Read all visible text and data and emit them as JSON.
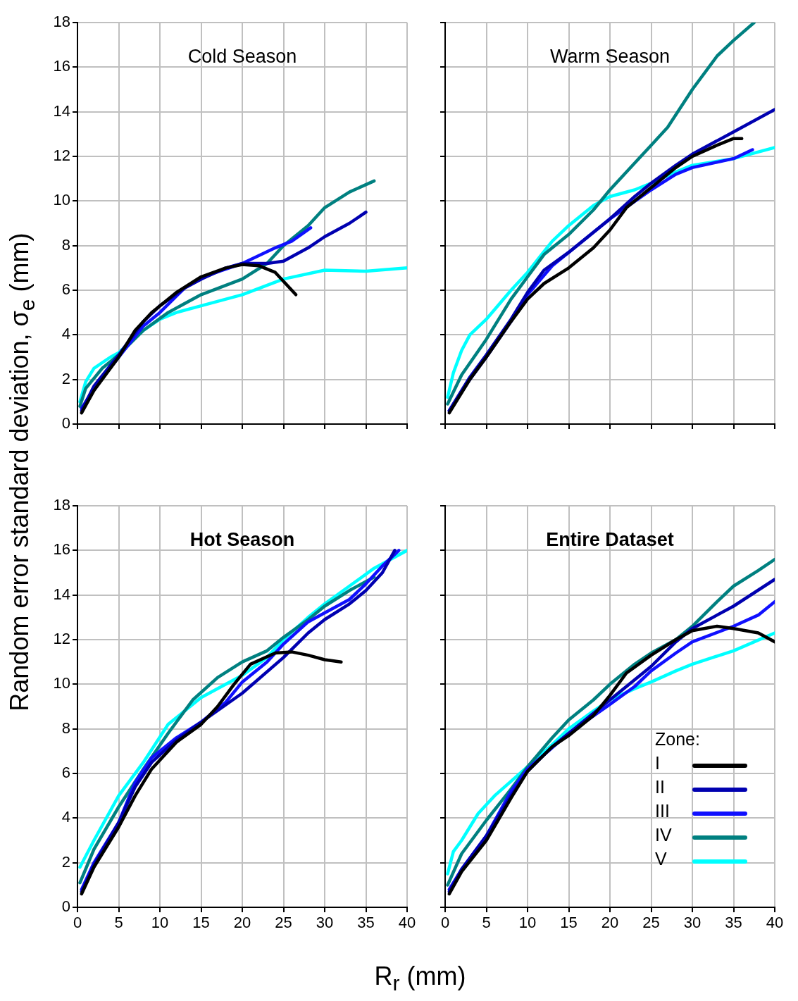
{
  "chart_data": [
    {
      "type": "line",
      "title": "Cold Season",
      "ylabel": "Random error standard deviation, σ$_{e}$ (mm)",
      "xlim": [
        0,
        40
      ],
      "xticks": [
        0,
        5,
        10,
        15,
        20,
        25,
        30,
        35,
        40
      ],
      "ylim": [
        0,
        18
      ],
      "yticks": [
        0,
        2,
        4,
        6,
        8,
        10,
        12,
        14,
        16,
        18
      ],
      "grid": true,
      "tick_labels": "y",
      "marker": "none",
      "line_style": "solid",
      "series": [
        {
          "color": "#000000",
          "x": [
            0.5,
            2,
            5,
            7,
            9,
            12,
            15,
            18,
            20,
            22,
            24,
            26.5
          ],
          "values": [
            0.5,
            1.5,
            3.0,
            4.2,
            5.0,
            5.9,
            6.6,
            7.0,
            7.15,
            7.1,
            6.8,
            5.8
          ]
        },
        {
          "color": "#0000b0",
          "x": [
            0.5,
            2,
            5,
            8,
            10,
            13,
            15,
            18,
            20,
            23,
            25,
            28,
            30,
            33,
            35
          ],
          "values": [
            0.6,
            1.7,
            3.1,
            4.6,
            5.3,
            6.1,
            6.5,
            7.0,
            7.2,
            7.2,
            7.3,
            7.9,
            8.4,
            9.0,
            9.5
          ]
        },
        {
          "color": "#1010ff",
          "x": [
            0.5,
            2,
            5,
            8,
            10,
            13,
            16,
            20,
            24,
            26,
            28.3
          ],
          "values": [
            0.7,
            1.6,
            3.0,
            4.4,
            5.0,
            6.1,
            6.7,
            7.2,
            7.9,
            8.2,
            8.8
          ]
        },
        {
          "color": "#008080",
          "x": [
            0.3,
            1,
            3,
            5,
            8,
            11,
            15,
            20,
            23,
            25,
            28,
            30,
            33,
            36
          ],
          "values": [
            0.8,
            1.6,
            2.5,
            3.1,
            4.2,
            5.0,
            5.8,
            6.5,
            7.2,
            8.0,
            8.9,
            9.7,
            10.4,
            10.9
          ]
        },
        {
          "color": "#00ffff",
          "x": [
            0.3,
            1,
            2,
            4,
            5,
            8,
            10,
            12,
            15,
            20,
            25,
            30,
            35,
            40
          ],
          "values": [
            1.0,
            1.9,
            2.5,
            3.0,
            3.2,
            4.2,
            4.7,
            5.0,
            5.3,
            5.8,
            6.5,
            6.9,
            6.85,
            7.0
          ]
        }
      ]
    },
    {
      "type": "line",
      "title": "Warm Season",
      "xlim": [
        0,
        40
      ],
      "xticks": [
        0,
        5,
        10,
        15,
        20,
        25,
        30,
        35,
        40
      ],
      "ylim": [
        0,
        18
      ],
      "yticks": [
        0,
        2,
        4,
        6,
        8,
        10,
        12,
        14,
        16,
        18
      ],
      "grid": true,
      "tick_labels": false,
      "marker": "none",
      "line_style": "solid",
      "series": [
        {
          "color": "#000000",
          "x": [
            0.5,
            3,
            5,
            8,
            10,
            12,
            15,
            18,
            20,
            22,
            25,
            28,
            30,
            33,
            35,
            36
          ],
          "values": [
            0.5,
            2.0,
            3.0,
            4.6,
            5.6,
            6.3,
            7.0,
            7.9,
            8.7,
            9.7,
            10.6,
            11.5,
            12.0,
            12.5,
            12.8,
            12.8
          ]
        },
        {
          "color": "#0000b0",
          "x": [
            0.5,
            3,
            5,
            8,
            10,
            12,
            15,
            18,
            20,
            23,
            25,
            28,
            30,
            35,
            40
          ],
          "values": [
            0.6,
            2.1,
            3.1,
            4.7,
            5.9,
            6.9,
            7.7,
            8.6,
            9.2,
            10.2,
            10.8,
            11.6,
            12.1,
            13.1,
            14.1
          ]
        },
        {
          "color": "#1010ff",
          "x": [
            0.5,
            3,
            5,
            8,
            10,
            13,
            15,
            20,
            25,
            28,
            30,
            35,
            37.3
          ],
          "values": [
            0.6,
            2.0,
            3.0,
            4.6,
            5.8,
            7.1,
            7.7,
            9.2,
            10.5,
            11.2,
            11.5,
            11.9,
            12.3
          ]
        },
        {
          "color": "#008080",
          "x": [
            0.3,
            2,
            5,
            8,
            10,
            12,
            15,
            18,
            20,
            23,
            25,
            27,
            30,
            33,
            35,
            37.5
          ],
          "values": [
            0.9,
            2.2,
            3.8,
            5.6,
            6.6,
            7.6,
            8.5,
            9.6,
            10.5,
            11.7,
            12.5,
            13.3,
            15.0,
            16.5,
            17.2,
            18.0
          ]
        },
        {
          "color": "#00ffff",
          "x": [
            0.3,
            1,
            2,
            3,
            5,
            8,
            10,
            13,
            15,
            18,
            20,
            23,
            25,
            28,
            30,
            35,
            40
          ],
          "values": [
            1.2,
            2.3,
            3.3,
            4.0,
            4.7,
            6.0,
            6.8,
            8.2,
            8.9,
            9.8,
            10.2,
            10.5,
            10.8,
            11.3,
            11.6,
            11.9,
            12.4
          ]
        }
      ]
    },
    {
      "type": "line",
      "title": "Hot Season",
      "xlabel": "R$_{r}$ (mm)",
      "xlim": [
        0,
        40
      ],
      "xticks": [
        0,
        5,
        10,
        15,
        20,
        25,
        30,
        35,
        40
      ],
      "ylim": [
        0,
        18
      ],
      "yticks": [
        0,
        2,
        4,
        6,
        8,
        10,
        12,
        14,
        16,
        18
      ],
      "grid": true,
      "marker": "none",
      "line_style": "solid",
      "series": [
        {
          "color": "#000000",
          "x": [
            0.5,
            2,
            5,
            7,
            9,
            12,
            15,
            17,
            19,
            21,
            24,
            26,
            28,
            30,
            32
          ],
          "values": [
            0.6,
            1.8,
            3.6,
            5.0,
            6.2,
            7.4,
            8.2,
            9.0,
            10.0,
            10.9,
            11.4,
            11.45,
            11.3,
            11.1,
            11.0
          ]
        },
        {
          "color": "#0000b0",
          "x": [
            0.5,
            2,
            5,
            7,
            9,
            12,
            15,
            20,
            25,
            28,
            30,
            33,
            35,
            37,
            38.5
          ],
          "values": [
            0.7,
            1.9,
            3.8,
            5.4,
            6.5,
            7.5,
            8.3,
            9.6,
            11.2,
            12.3,
            12.9,
            13.6,
            14.2,
            15.0,
            16.0
          ]
        },
        {
          "color": "#1010ff",
          "x": [
            0.5,
            2,
            5,
            7,
            9,
            12,
            15,
            18,
            20,
            23,
            25,
            28,
            30,
            33,
            35,
            37,
            39
          ],
          "values": [
            0.8,
            2.0,
            3.8,
            5.6,
            6.7,
            7.6,
            8.3,
            9.2,
            10.1,
            11.0,
            11.8,
            12.8,
            13.2,
            13.8,
            14.5,
            15.3,
            16.0
          ]
        },
        {
          "color": "#008080",
          "x": [
            0.3,
            2,
            5,
            8,
            11,
            14,
            17,
            20,
            23,
            25,
            28,
            30,
            33,
            36
          ],
          "values": [
            1.1,
            2.6,
            4.5,
            6.2,
            7.8,
            9.3,
            10.3,
            11.0,
            11.5,
            12.1,
            12.9,
            13.5,
            14.2,
            14.8
          ]
        },
        {
          "color": "#00ffff",
          "x": [
            0.3,
            2,
            5,
            8,
            11,
            13,
            15,
            18,
            20,
            23,
            25,
            28,
            30,
            33,
            36,
            40
          ],
          "values": [
            1.8,
            3.0,
            5.0,
            6.5,
            8.2,
            8.8,
            9.4,
            10.0,
            10.4,
            11.2,
            12.0,
            13.0,
            13.6,
            14.4,
            15.2,
            16.0
          ]
        }
      ]
    },
    {
      "type": "line",
      "title": "Entire Dataset",
      "xlim": [
        0,
        40
      ],
      "xticks": [
        0,
        5,
        10,
        15,
        20,
        25,
        30,
        35,
        40
      ],
      "ylim": [
        0,
        18
      ],
      "yticks": [
        0,
        2,
        4,
        6,
        8,
        10,
        12,
        14,
        16,
        18
      ],
      "grid": true,
      "tick_labels": "x",
      "marker": "none",
      "line_style": "solid",
      "legend": "bottom right",
      "legend_title": "Zone:",
      "series": [
        {
          "name": "I",
          "color": "#000000",
          "x": [
            0.5,
            2,
            5,
            8,
            10,
            13,
            15,
            18,
            20,
            22,
            25,
            28,
            30,
            33,
            35,
            38,
            40
          ],
          "values": [
            0.6,
            1.6,
            3.0,
            4.9,
            6.1,
            7.2,
            7.7,
            8.6,
            9.5,
            10.5,
            11.3,
            12.0,
            12.4,
            12.6,
            12.5,
            12.3,
            11.9
          ]
        },
        {
          "name": "II",
          "color": "#0000b0",
          "x": [
            0.5,
            2,
            5,
            8,
            10,
            13,
            15,
            18,
            20,
            25,
            28,
            30,
            35,
            40
          ],
          "values": [
            0.7,
            1.7,
            3.2,
            5.0,
            6.1,
            7.2,
            7.8,
            8.7,
            9.3,
            10.8,
            11.9,
            12.5,
            13.5,
            14.7
          ]
        },
        {
          "name": "III",
          "color": "#1010ff",
          "x": [
            0.5,
            2,
            5,
            8,
            10,
            15,
            20,
            23,
            25,
            28,
            30,
            35,
            38,
            40
          ],
          "values": [
            0.8,
            1.7,
            3.2,
            5.2,
            6.2,
            7.8,
            9.1,
            9.9,
            10.6,
            11.4,
            11.9,
            12.6,
            13.1,
            13.7
          ]
        },
        {
          "name": "IV",
          "color": "#008080",
          "x": [
            0.3,
            2,
            5,
            8,
            10,
            13,
            15,
            18,
            20,
            23,
            25,
            28,
            30,
            33,
            35,
            38,
            40
          ],
          "values": [
            1.0,
            2.4,
            3.9,
            5.3,
            6.3,
            7.6,
            8.4,
            9.3,
            10.0,
            10.9,
            11.4,
            12.0,
            12.6,
            13.7,
            14.4,
            15.1,
            15.6
          ]
        },
        {
          "name": "V",
          "color": "#00ffff",
          "x": [
            0.3,
            1,
            2,
            4,
            6,
            10,
            13,
            15,
            18,
            20,
            23,
            25,
            28,
            30,
            35,
            40
          ],
          "values": [
            1.5,
            2.5,
            3.0,
            4.2,
            5.0,
            6.3,
            7.3,
            8.0,
            8.8,
            9.3,
            9.8,
            10.1,
            10.6,
            10.9,
            11.5,
            12.3
          ]
        }
      ]
    }
  ]
}
